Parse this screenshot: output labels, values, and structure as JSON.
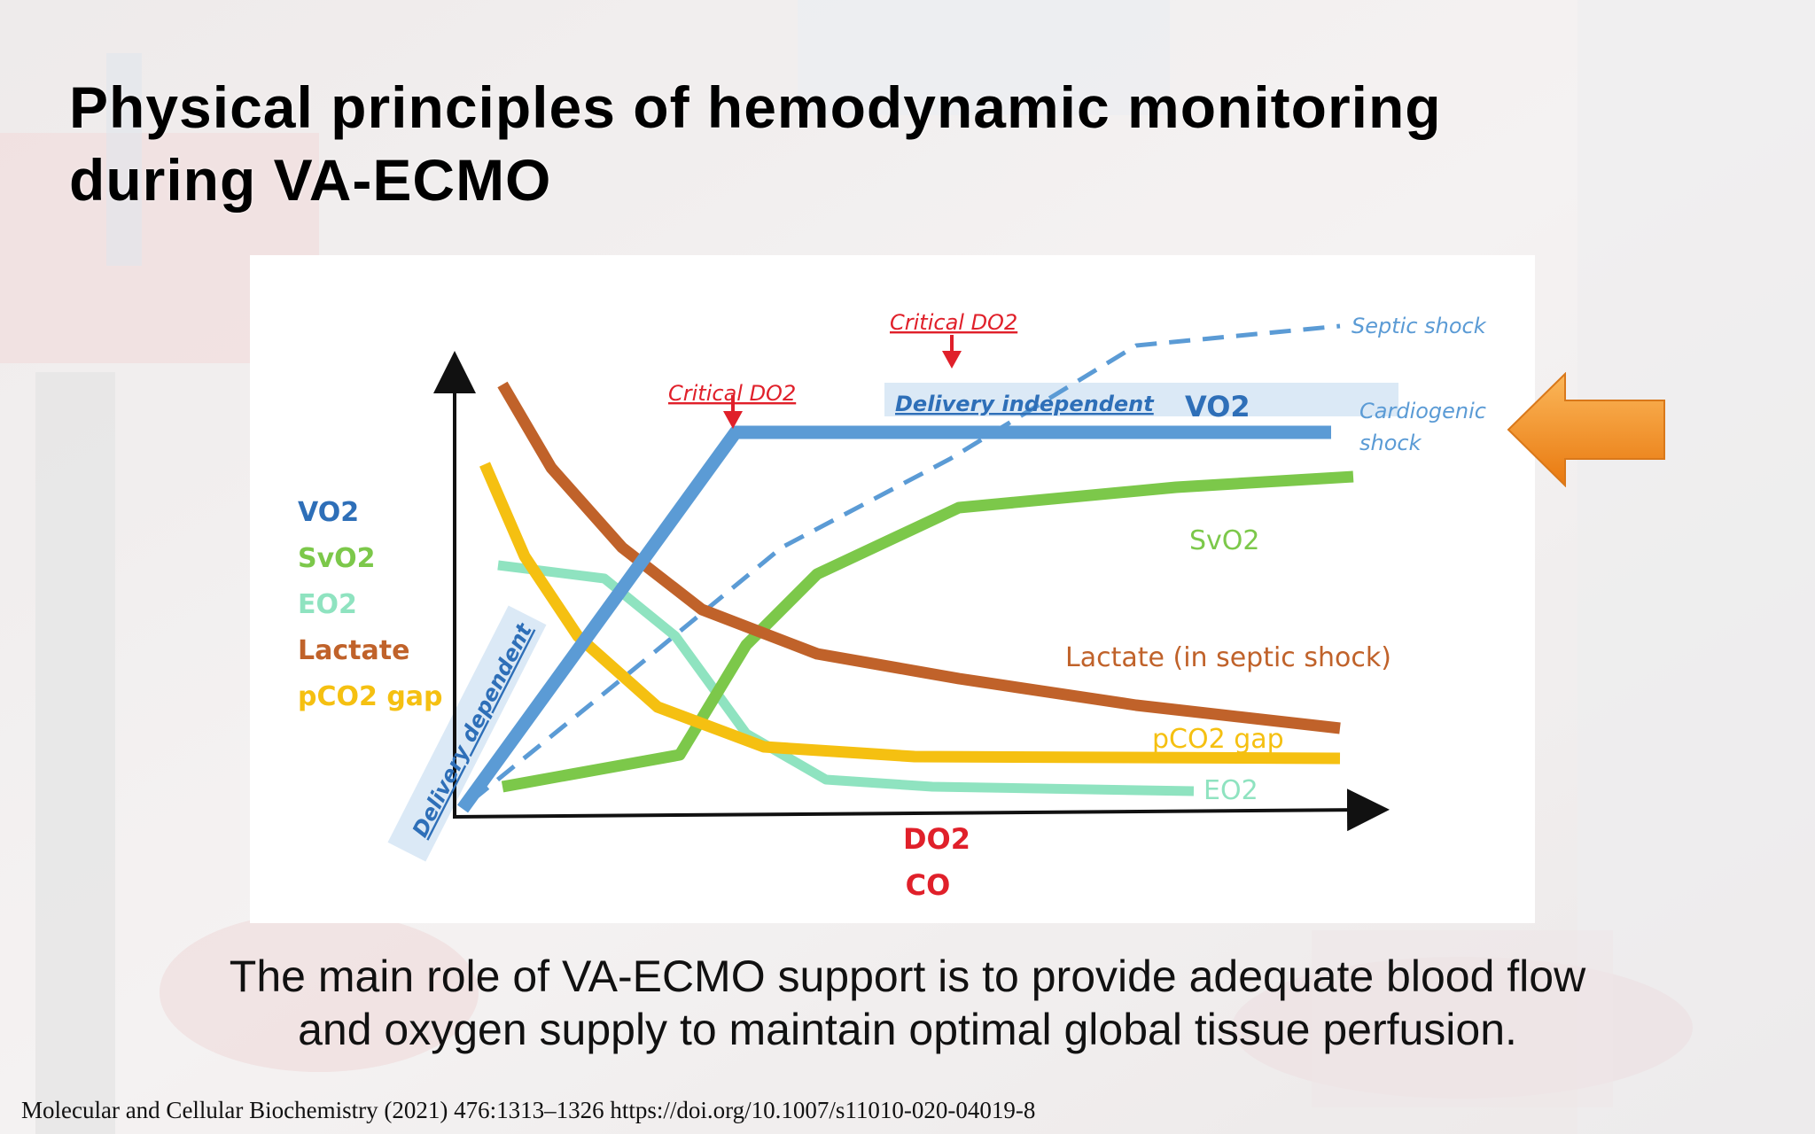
{
  "slide": {
    "title_line1": "Physical principles of hemodynamic monitoring",
    "title_line2": "during VA-ECMO",
    "caption_line1": "The main role of VA-ECMO support is to provide adequate blood flow",
    "caption_line2": "and oxygen supply to maintain optimal global tissue perfusion.",
    "reference": "Molecular and Cellular Biochemistry (2021) 476:1313–1326 https://doi.org/10.1007/s11010-020-04019-8"
  },
  "diagram": {
    "y_axis_legend": [
      "VO2",
      "SvO2",
      "EO2",
      "Lactate",
      "pCO2 gap"
    ],
    "x_axis_label_1": "DO2",
    "x_axis_label_2": "CO",
    "critical_do2_lower": "Critical DO2",
    "critical_do2_upper": "Critical DO2",
    "delivery_independent": "Delivery independent",
    "delivery_dependent": "Delivery dependent",
    "vo2_label": "VO2",
    "svo2_label": "SvO2",
    "lactate_label": "Lactate (in septic shock)",
    "pco2_label": "pCO2 gap",
    "eo2_label": "EO2",
    "septic_shock": "Septic shock",
    "cardiogenic_1": "Cardiogenic",
    "cardiogenic_2": "shock"
  },
  "colors": {
    "vo2": "#5b9bd5",
    "svo2": "#7cc84a",
    "eo2": "#8fe3c0",
    "lactate": "#c0622a",
    "pco2": "#f5c011",
    "critical": "#e0202a",
    "axis_labels": "#e0202a",
    "highlight_arrow": "#f08a1c"
  }
}
